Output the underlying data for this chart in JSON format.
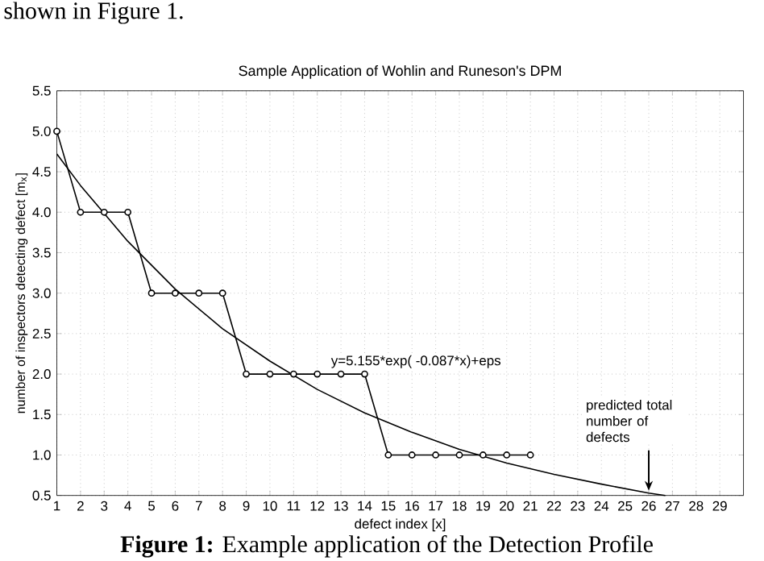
{
  "chart_data": {
    "type": "line",
    "title": "Sample Application of Wohlin and Runeson's DPM",
    "xlabel": "defect index [x]",
    "ylabel": "number of inspectors detecting defect [m$_{x}$]",
    "xlim": [
      1,
      30
    ],
    "xticks": [
      1,
      2,
      3,
      4,
      5,
      6,
      7,
      8,
      9,
      10,
      11,
      12,
      13,
      14,
      15,
      16,
      17,
      18,
      19,
      20,
      21,
      22,
      23,
      24,
      25,
      26,
      27,
      28,
      29
    ],
    "ylim": [
      0.5,
      5.5
    ],
    "yticks": [
      0.5,
      {
        "value": 1,
        "label": "1.0"
      },
      1.5,
      {
        "value": 2,
        "label": "2.0"
      },
      2.5,
      {
        "value": 3,
        "label": "3.0"
      },
      3.5,
      {
        "value": 4,
        "label": "4.0"
      },
      4.5,
      {
        "value": 5,
        "label": "5.0"
      },
      5.5
    ],
    "grid": true,
    "marker": "circle",
    "line_style": "solid",
    "series": [
      {
        "color": "#000000",
        "x": [
          1,
          2,
          3,
          4,
          5,
          6,
          7,
          8,
          9,
          10,
          11,
          12,
          13,
          14,
          15,
          16,
          17,
          18,
          19,
          20,
          21
        ],
        "values": [
          5,
          4,
          4,
          4,
          3,
          3,
          3,
          3,
          2,
          2,
          2,
          2,
          2,
          2,
          1,
          1,
          1,
          1,
          1,
          1,
          1
        ]
      },
      {
        "color": "#000000",
        "marker": "none",
        "x": [
          1,
          2,
          4,
          6,
          8,
          10,
          12,
          14,
          16,
          18,
          20,
          22,
          24,
          26,
          26.7
        ],
        "values": [
          4.72,
          4.33,
          3.64,
          3.05,
          2.56,
          2.16,
          1.81,
          1.52,
          1.28,
          1.07,
          0.9,
          0.76,
          0.64,
          0.53,
          0.5
        ]
      }
    ],
    "annotations": [
      "shown in Figure 1.",
      "**Figure 1:** Example application of the Detection Profile",
      "y=5.155*exp( -0.087*x)+eps",
      {
        "text": "predicted total number of defects",
        "x": 26,
        "y": 0.5
      }
    ]
  }
}
